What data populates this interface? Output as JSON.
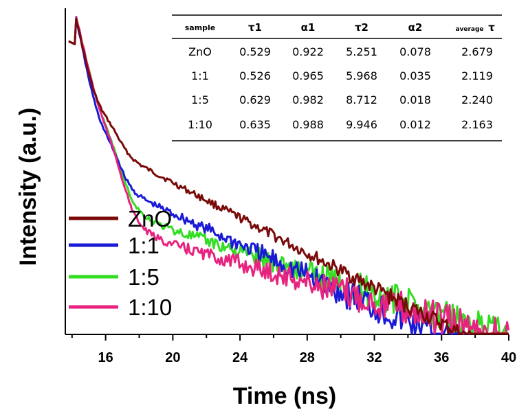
{
  "chart_data": {
    "type": "line",
    "xlabel": "Time (ns)",
    "ylabel": "Intensity (a.u.)",
    "xlim": [
      13.6,
      40
    ],
    "xticks": [
      16,
      20,
      24,
      28,
      32,
      36,
      40
    ],
    "y_scale": "log",
    "y_tick_labels": false,
    "legend_placement": "lower-left",
    "series": [
      {
        "name": "ZnO",
        "color": "#7a0a0a",
        "tau1": 0.529,
        "alpha1": 0.922,
        "tau2": 5.251,
        "alpha2": 0.078
      },
      {
        "name": "1:1",
        "color": "#1a1ad6",
        "tau1": 0.526,
        "alpha1": 0.965,
        "tau2": 5.968,
        "alpha2": 0.035
      },
      {
        "name": "1:5",
        "color": "#33dd22",
        "tau1": 0.629,
        "alpha1": 0.982,
        "tau2": 8.712,
        "alpha2": 0.018
      },
      {
        "name": "1:10",
        "color": "#e8237f",
        "tau1": 0.635,
        "alpha1": 0.988,
        "tau2": 9.946,
        "alpha2": 0.012
      }
    ]
  },
  "table": {
    "headers": [
      "sample",
      "τ1",
      "α1",
      "τ2",
      "α2",
      "average",
      "τ"
    ],
    "rows": [
      [
        "ZnO",
        "0.529",
        "0.922",
        "5.251",
        "0.078",
        "2.679"
      ],
      [
        "1:1",
        "0.526",
        "0.965",
        "5.968",
        "0.035",
        "2.119"
      ],
      [
        "1:5",
        "0.629",
        "0.982",
        "8.712",
        "0.018",
        "2.240"
      ],
      [
        "1:10",
        "0.635",
        "0.988",
        "9.946",
        "0.012",
        "2.163"
      ]
    ]
  }
}
